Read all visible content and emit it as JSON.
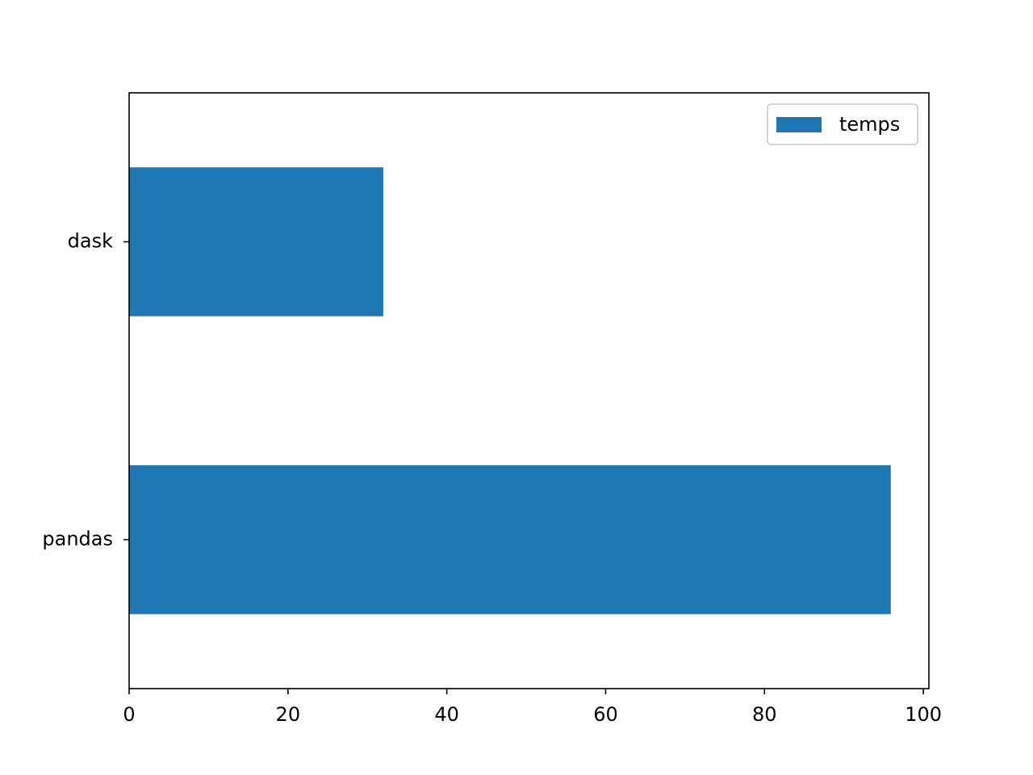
{
  "chart_data": {
    "type": "barh",
    "categories": [
      "pandas",
      "dask"
    ],
    "series": [
      {
        "name": "temps",
        "color": "#1f77b4",
        "values": [
          95.9,
          32.0
        ]
      }
    ],
    "xlim": [
      0,
      100.7
    ],
    "xticks": [
      0,
      20,
      40,
      60,
      80,
      100
    ],
    "legend": "upper right",
    "grid": false
  }
}
